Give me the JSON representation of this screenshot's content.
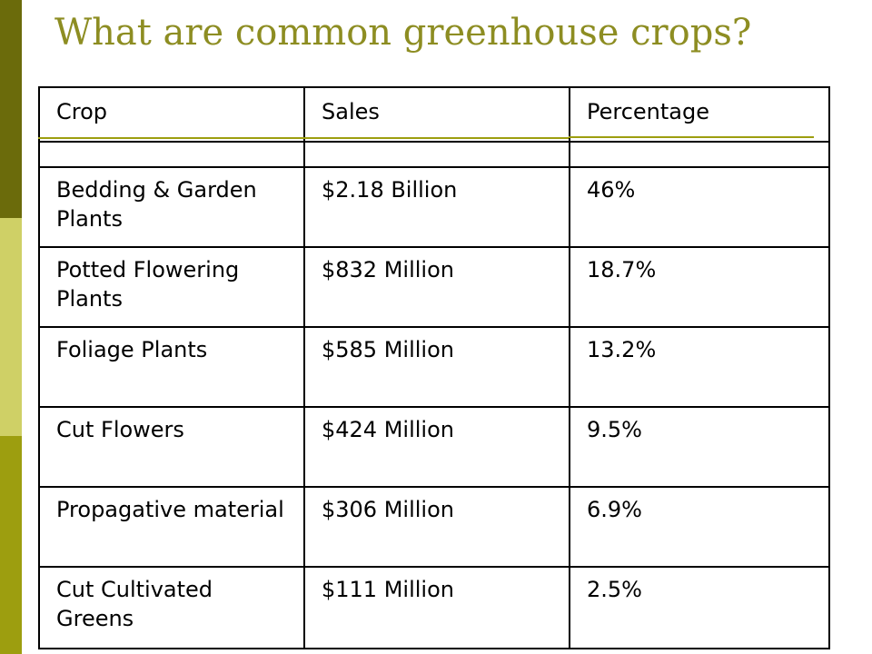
{
  "slide": {
    "title": "What are common greenhouse crops?"
  },
  "table": {
    "headers": [
      "Crop",
      "Sales",
      "Percentage"
    ],
    "rows": [
      {
        "crop": "Bedding & Garden Plants",
        "sales": "$2.18 Billion",
        "percentage": "46%"
      },
      {
        "crop": "Potted Flowering Plants",
        "sales": "$832 Million",
        "percentage": "18.7%"
      },
      {
        "crop": "Foliage Plants",
        "sales": "$585 Million",
        "percentage": "13.2%"
      },
      {
        "crop": "Cut Flowers",
        "sales": "$424 Million",
        "percentage": "9.5%"
      },
      {
        "crop": "Propagative material",
        "sales": "$306 Million",
        "percentage": "6.9%"
      },
      {
        "crop": "Cut Cultivated Greens",
        "sales": "$111 Million",
        "percentage": "2.5%"
      }
    ]
  },
  "colors": {
    "title": "#8d8d22",
    "bar_dark": "#6b6b0b",
    "bar_light": "#cfd066",
    "bar_mid": "#9d9e0f",
    "accent_line": "#9d9e0f"
  }
}
